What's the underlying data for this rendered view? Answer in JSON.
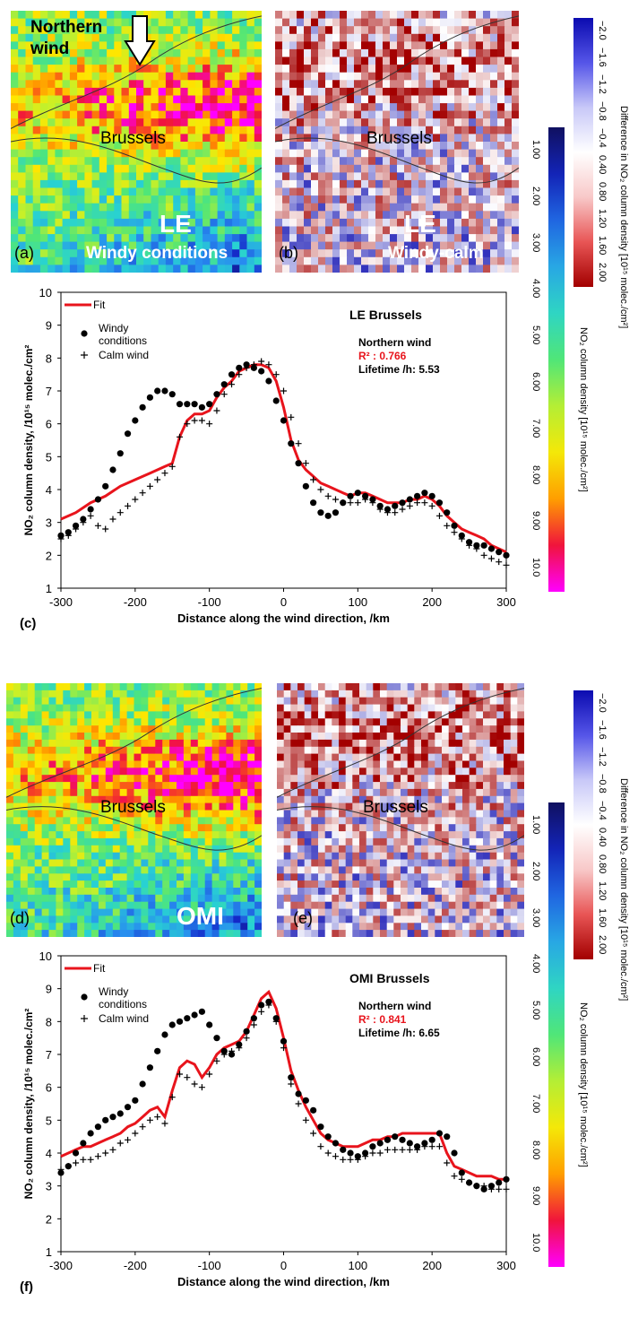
{
  "maps": {
    "a": {
      "tag": "(a)",
      "model": "LE",
      "caption": "Windy conditions",
      "city": "Brussels",
      "wind_text_1": "Northern",
      "wind_text_2": "wind"
    },
    "b": {
      "tag": "(b)",
      "model": "LE",
      "caption": "Windy-calm",
      "city": "Brussels"
    },
    "d": {
      "tag": "(d)",
      "model": "OMI",
      "city": "Brussels"
    },
    "e": {
      "tag": "(e)",
      "city": "Brussels"
    }
  },
  "colorbars": {
    "diff_ticks": [
      "−2.0",
      "−1.6",
      "−1.2",
      "−0.8",
      "−0.4",
      "0.40",
      "0.80",
      "1.20",
      "1.60",
      "2.00"
    ],
    "diff_label": "Difference in NO₂ column density [10¹⁵ molec./cm²]",
    "abs_ticks": [
      "1.00",
      "2.00",
      "3.00",
      "4.00",
      "5.00",
      "6.00",
      "7.00",
      "8.00",
      "9.00",
      "10.0"
    ],
    "abs_label": "NO₂ column density [10¹⁵ molec./cm²]",
    "colors": {
      "diff_neg": "#0b0bb0",
      "diff_pos": "#a30000",
      "abs_low": "#101060",
      "abs_high": "#ff00ff"
    }
  },
  "chart_data": [
    {
      "type": "line",
      "panel": "(c)",
      "title": "LE     Brussels",
      "xlabel": "Distance along the wind direction, /km",
      "ylabel": "NO₂ column density, /10¹⁵ molec./cm²",
      "xlim": [
        -300,
        300
      ],
      "ylim": [
        1,
        10
      ],
      "xticks": [
        -300,
        -200,
        -100,
        0,
        100,
        200,
        300
      ],
      "yticks": [
        1,
        2,
        3,
        4,
        5,
        6,
        7,
        8,
        9,
        10
      ],
      "legend": {
        "fit": "Fit",
        "windy": "Windy conditions",
        "calm": "Calm wind",
        "placement": "top-left"
      },
      "annotation": {
        "wind": "Northern wind",
        "r2": "R² : 0.766",
        "lifetime": "Lifetime /h: 5.53"
      },
      "series": [
        {
          "name": "Fit",
          "style": "line",
          "color": "#e8141c",
          "x": [
            -300,
            -280,
            -260,
            -240,
            -220,
            -200,
            -180,
            -160,
            -150,
            -145,
            -140,
            -130,
            -120,
            -110,
            -100,
            -90,
            -80,
            -70,
            -60,
            -50,
            -40,
            -30,
            -20,
            -10,
            0,
            10,
            20,
            30,
            40,
            50,
            60,
            70,
            80,
            90,
            100,
            110,
            120,
            130,
            140,
            150,
            160,
            170,
            180,
            190,
            200,
            210,
            220,
            230,
            240,
            250,
            260,
            270,
            280,
            290,
            300
          ],
          "y": [
            3.1,
            3.3,
            3.6,
            3.8,
            4.1,
            4.3,
            4.5,
            4.7,
            4.8,
            5.2,
            5.6,
            6.1,
            6.3,
            6.3,
            6.4,
            6.8,
            7.1,
            7.3,
            7.6,
            7.7,
            7.8,
            7.8,
            7.7,
            7.3,
            6.5,
            5.5,
            4.9,
            4.6,
            4.4,
            4.2,
            4.1,
            4.0,
            3.9,
            3.8,
            3.9,
            3.9,
            3.8,
            3.7,
            3.6,
            3.6,
            3.6,
            3.7,
            3.7,
            3.8,
            3.7,
            3.5,
            3.2,
            3.0,
            2.8,
            2.7,
            2.6,
            2.5,
            2.3,
            2.2,
            2.1
          ]
        },
        {
          "name": "Windy conditions",
          "style": "dot",
          "color": "#000000",
          "x": [
            -300,
            -290,
            -280,
            -270,
            -260,
            -250,
            -240,
            -230,
            -220,
            -210,
            -200,
            -190,
            -180,
            -170,
            -160,
            -150,
            -140,
            -130,
            -120,
            -110,
            -100,
            -90,
            -80,
            -70,
            -60,
            -50,
            -40,
            -30,
            -20,
            -10,
            0,
            10,
            20,
            30,
            40,
            50,
            60,
            70,
            80,
            90,
            100,
            110,
            120,
            130,
            140,
            150,
            160,
            170,
            180,
            190,
            200,
            210,
            220,
            230,
            240,
            250,
            260,
            270,
            280,
            290,
            300
          ],
          "y": [
            2.6,
            2.7,
            2.9,
            3.1,
            3.4,
            3.7,
            4.1,
            4.6,
            5.1,
            5.7,
            6.1,
            6.5,
            6.8,
            7.0,
            7.0,
            6.9,
            6.6,
            6.6,
            6.6,
            6.5,
            6.6,
            6.9,
            7.2,
            7.5,
            7.7,
            7.8,
            7.7,
            7.6,
            7.3,
            6.7,
            6.1,
            5.4,
            4.8,
            4.1,
            3.6,
            3.3,
            3.2,
            3.3,
            3.6,
            3.8,
            3.9,
            3.8,
            3.7,
            3.5,
            3.4,
            3.5,
            3.6,
            3.7,
            3.8,
            3.9,
            3.8,
            3.6,
            3.3,
            2.9,
            2.6,
            2.4,
            2.3,
            2.3,
            2.2,
            2.1,
            2.0
          ]
        },
        {
          "name": "Calm wind",
          "style": "plus",
          "color": "#000000",
          "x": [
            -300,
            -290,
            -280,
            -270,
            -260,
            -250,
            -240,
            -230,
            -220,
            -210,
            -200,
            -190,
            -180,
            -170,
            -160,
            -150,
            -140,
            -130,
            -120,
            -110,
            -100,
            -90,
            -80,
            -70,
            -60,
            -50,
            -40,
            -30,
            -20,
            -10,
            0,
            10,
            20,
            30,
            40,
            50,
            60,
            70,
            80,
            90,
            100,
            110,
            120,
            130,
            140,
            150,
            160,
            170,
            180,
            190,
            200,
            210,
            220,
            230,
            240,
            250,
            260,
            270,
            280,
            290,
            300
          ],
          "y": [
            2.5,
            2.6,
            2.8,
            3.0,
            3.2,
            2.9,
            2.8,
            3.1,
            3.3,
            3.5,
            3.7,
            3.9,
            4.1,
            4.3,
            4.5,
            4.7,
            5.6,
            6.0,
            6.1,
            6.1,
            6.0,
            6.4,
            6.9,
            7.2,
            7.5,
            7.7,
            7.8,
            7.9,
            7.8,
            7.5,
            7.0,
            6.2,
            5.4,
            4.8,
            4.3,
            4.0,
            3.8,
            3.7,
            3.6,
            3.6,
            3.6,
            3.7,
            3.6,
            3.4,
            3.3,
            3.3,
            3.4,
            3.5,
            3.6,
            3.6,
            3.5,
            3.2,
            2.9,
            2.7,
            2.5,
            2.3,
            2.2,
            2.0,
            1.9,
            1.8,
            1.7
          ]
        }
      ]
    },
    {
      "type": "line",
      "panel": "(f)",
      "title": "OMI     Brussels",
      "xlabel": "Distance along the wind direction, /km",
      "ylabel": "NO₂ column density, /10¹⁵ molec./cm²",
      "xlim": [
        -300,
        300
      ],
      "ylim": [
        1,
        10
      ],
      "xticks": [
        -300,
        -200,
        -100,
        0,
        100,
        200,
        300
      ],
      "yticks": [
        1,
        2,
        3,
        4,
        5,
        6,
        7,
        8,
        9,
        10
      ],
      "legend": {
        "fit": "Fit",
        "windy": "Windy conditions",
        "calm": "Calm wind",
        "placement": "top-left"
      },
      "annotation": {
        "wind": "Northern wind",
        "r2": "R² : 0.841",
        "lifetime": "Lifetime /h: 6.65"
      },
      "series": [
        {
          "name": "Fit",
          "style": "line",
          "color": "#e8141c",
          "x": [
            -300,
            -290,
            -280,
            -270,
            -260,
            -250,
            -240,
            -230,
            -220,
            -210,
            -200,
            -190,
            -180,
            -170,
            -160,
            -150,
            -140,
            -130,
            -120,
            -110,
            -100,
            -90,
            -80,
            -70,
            -60,
            -50,
            -40,
            -30,
            -20,
            -10,
            0,
            10,
            20,
            30,
            40,
            50,
            60,
            70,
            80,
            90,
            100,
            110,
            120,
            130,
            140,
            150,
            160,
            170,
            180,
            190,
            200,
            210,
            220,
            230,
            240,
            250,
            260,
            270,
            280,
            290,
            300
          ],
          "y": [
            3.9,
            4.0,
            4.1,
            4.2,
            4.2,
            4.3,
            4.4,
            4.5,
            4.6,
            4.8,
            4.9,
            5.1,
            5.3,
            5.4,
            5.1,
            5.9,
            6.6,
            6.8,
            6.7,
            6.3,
            6.6,
            7.0,
            7.2,
            7.3,
            7.4,
            7.7,
            8.2,
            8.7,
            8.9,
            8.4,
            7.5,
            6.5,
            5.9,
            5.4,
            5.0,
            4.6,
            4.4,
            4.3,
            4.2,
            4.2,
            4.2,
            4.3,
            4.4,
            4.4,
            4.5,
            4.5,
            4.6,
            4.6,
            4.6,
            4.6,
            4.6,
            4.6,
            4.0,
            3.6,
            3.5,
            3.4,
            3.3,
            3.3,
            3.3,
            3.2,
            3.2
          ]
        },
        {
          "name": "Windy conditions",
          "style": "dot",
          "color": "#000000",
          "x": [
            -300,
            -290,
            -280,
            -270,
            -260,
            -250,
            -240,
            -230,
            -220,
            -210,
            -200,
            -190,
            -180,
            -170,
            -160,
            -150,
            -140,
            -130,
            -120,
            -110,
            -100,
            -90,
            -80,
            -70,
            -60,
            -50,
            -40,
            -30,
            -20,
            -10,
            0,
            10,
            20,
            30,
            40,
            50,
            60,
            70,
            80,
            90,
            100,
            110,
            120,
            130,
            140,
            150,
            160,
            170,
            180,
            190,
            200,
            210,
            220,
            230,
            240,
            250,
            260,
            270,
            280,
            290,
            300
          ],
          "y": [
            3.4,
            3.6,
            4.0,
            4.3,
            4.6,
            4.8,
            5.0,
            5.1,
            5.2,
            5.4,
            5.6,
            6.1,
            6.6,
            7.1,
            7.6,
            7.9,
            8.0,
            8.1,
            8.2,
            8.3,
            7.9,
            7.5,
            7.1,
            7.0,
            7.3,
            7.7,
            8.1,
            8.5,
            8.6,
            8.1,
            7.4,
            6.3,
            5.8,
            5.6,
            5.3,
            4.8,
            4.5,
            4.3,
            4.1,
            4.0,
            3.9,
            4.0,
            4.2,
            4.3,
            4.4,
            4.5,
            4.4,
            4.3,
            4.2,
            4.3,
            4.4,
            4.6,
            4.5,
            4.0,
            3.4,
            3.1,
            3.0,
            2.9,
            3.0,
            3.1,
            3.2
          ]
        },
        {
          "name": "Calm wind",
          "style": "plus",
          "color": "#000000",
          "x": [
            -300,
            -290,
            -280,
            -270,
            -260,
            -250,
            -240,
            -230,
            -220,
            -210,
            -200,
            -190,
            -180,
            -170,
            -160,
            -150,
            -140,
            -130,
            -120,
            -110,
            -100,
            -90,
            -80,
            -70,
            -60,
            -50,
            -40,
            -30,
            -20,
            -10,
            0,
            10,
            20,
            30,
            40,
            50,
            60,
            70,
            80,
            90,
            100,
            110,
            120,
            130,
            140,
            150,
            160,
            170,
            180,
            190,
            200,
            210,
            220,
            230,
            240,
            250,
            260,
            270,
            280,
            290,
            300
          ],
          "y": [
            3.5,
            3.6,
            3.7,
            3.8,
            3.8,
            3.9,
            4.0,
            4.1,
            4.3,
            4.4,
            4.6,
            4.8,
            5.0,
            5.1,
            4.9,
            5.7,
            6.4,
            6.3,
            6.1,
            6.0,
            6.4,
            6.8,
            7.0,
            7.1,
            7.2,
            7.5,
            7.9,
            8.3,
            8.5,
            8.0,
            7.2,
            6.1,
            5.5,
            5.0,
            4.6,
            4.2,
            4.0,
            3.9,
            3.8,
            3.8,
            3.8,
            3.9,
            4.0,
            4.0,
            4.1,
            4.1,
            4.1,
            4.1,
            4.1,
            4.2,
            4.2,
            4.2,
            3.7,
            3.3,
            3.2,
            3.1,
            3.0,
            3.0,
            2.9,
            2.9,
            2.9
          ]
        }
      ]
    }
  ]
}
